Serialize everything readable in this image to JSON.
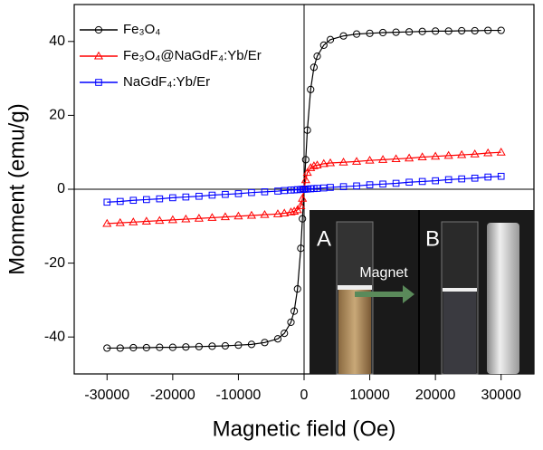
{
  "chart_data": {
    "type": "line",
    "xlabel": "Magnetic field (Oe)",
    "ylabel": "Monment (emu/g)",
    "x": [
      -30000,
      -28000,
      -26000,
      -24000,
      -22000,
      -20000,
      -18000,
      -16000,
      -14000,
      -12000,
      -10000,
      -8000,
      -6000,
      -4000,
      -3000,
      -2000,
      -1500,
      -1000,
      -500,
      -250,
      0,
      250,
      500,
      1000,
      1500,
      2000,
      3000,
      4000,
      6000,
      8000,
      10000,
      12000,
      14000,
      16000,
      18000,
      20000,
      22000,
      24000,
      26000,
      28000,
      30000
    ],
    "series": [
      {
        "name": "Fe₃O₄",
        "color": "#000000",
        "marker": "circle",
        "values": [
          -43,
          -43,
          -42.9,
          -42.9,
          -42.8,
          -42.8,
          -42.7,
          -42.6,
          -42.5,
          -42.4,
          -42.2,
          -42,
          -41.5,
          -40.5,
          -39,
          -36,
          -33,
          -27,
          -16,
          -8,
          0,
          8,
          16,
          27,
          33,
          36,
          39,
          40.5,
          41.5,
          42,
          42.2,
          42.4,
          42.5,
          42.6,
          42.7,
          42.8,
          42.8,
          42.9,
          42.9,
          43,
          43
        ]
      },
      {
        "name": "Fe₃O₄@NaGdF₄:Yb/Er",
        "color": "#ff0000",
        "marker": "triangle",
        "values": [
          -9.3,
          -9.1,
          -8.9,
          -8.7,
          -8.5,
          -8.3,
          -8.1,
          -7.9,
          -7.7,
          -7.5,
          -7.3,
          -7.1,
          -6.9,
          -6.7,
          -6.5,
          -6.2,
          -6,
          -5.6,
          -4.5,
          -2.5,
          0,
          2.5,
          4.5,
          5.8,
          6.3,
          6.5,
          6.9,
          7.1,
          7.3,
          7.5,
          7.8,
          8,
          8.2,
          8.4,
          8.7,
          8.9,
          9.1,
          9.3,
          9.5,
          9.8,
          10
        ]
      },
      {
        "name": "NaGdF₄:Yb/Er",
        "color": "#0000ff",
        "marker": "square",
        "values": [
          -3.5,
          -3.3,
          -3,
          -2.8,
          -2.6,
          -2.3,
          -2.1,
          -1.9,
          -1.6,
          -1.4,
          -1.2,
          -0.9,
          -0.7,
          -0.5,
          -0.35,
          -0.23,
          -0.18,
          -0.12,
          -0.06,
          -0.03,
          0,
          0.03,
          0.06,
          0.12,
          0.18,
          0.23,
          0.35,
          0.5,
          0.7,
          0.9,
          1.2,
          1.4,
          1.6,
          1.9,
          2.1,
          2.3,
          2.6,
          2.8,
          3,
          3.3,
          3.5
        ]
      }
    ],
    "xlim": [
      -35000,
      35000
    ],
    "ylim": [
      -50,
      50
    ],
    "xticks": [
      -30000,
      -20000,
      -10000,
      0,
      10000,
      20000,
      30000
    ],
    "yticks": [
      -40,
      -20,
      0,
      20,
      40
    ],
    "legend": "top-left",
    "annotations": [
      "A",
      "B",
      "Magnet"
    ]
  }
}
